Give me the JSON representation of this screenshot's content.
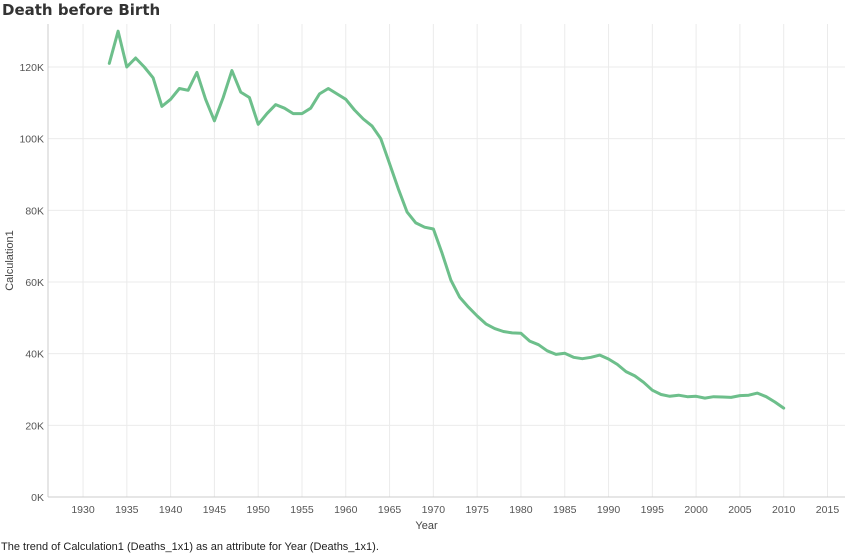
{
  "title": "Death before Birth",
  "caption": "The trend of Calculation1 (Deaths_1x1) as an attribute for Year (Deaths_1x1).",
  "colors": {
    "line": "#6dbf8b",
    "grid": "#ebebeb",
    "axis": "#cccccc"
  },
  "chart_data": {
    "type": "line",
    "title": "Death before Birth",
    "xlabel": "Year",
    "ylabel": "Calculation1",
    "xlim": [
      1926,
      2017
    ],
    "ylim": [
      0,
      132000
    ],
    "x_ticks": [
      {
        "value": 1930,
        "label": "1930"
      },
      {
        "value": 1935,
        "label": "1935"
      },
      {
        "value": 1940,
        "label": "1940"
      },
      {
        "value": 1945,
        "label": "1945"
      },
      {
        "value": 1950,
        "label": "1950"
      },
      {
        "value": 1955,
        "label": "1955"
      },
      {
        "value": 1960,
        "label": "1960"
      },
      {
        "value": 1965,
        "label": "1965"
      },
      {
        "value": 1970,
        "label": "1970"
      },
      {
        "value": 1975,
        "label": "1975"
      },
      {
        "value": 1980,
        "label": "1980"
      },
      {
        "value": 1985,
        "label": "1985"
      },
      {
        "value": 1990,
        "label": "1990"
      },
      {
        "value": 1995,
        "label": "1995"
      },
      {
        "value": 2000,
        "label": "2000"
      },
      {
        "value": 2005,
        "label": "2005"
      },
      {
        "value": 2010,
        "label": "2010"
      },
      {
        "value": 2015,
        "label": "2015"
      }
    ],
    "y_ticks": [
      {
        "value": 0,
        "label": "0K"
      },
      {
        "value": 20000,
        "label": "20K"
      },
      {
        "value": 40000,
        "label": "40K"
      },
      {
        "value": 60000,
        "label": "60K"
      },
      {
        "value": 80000,
        "label": "80K"
      },
      {
        "value": 100000,
        "label": "100K"
      },
      {
        "value": 120000,
        "label": "120K"
      }
    ],
    "grid": true,
    "series": [
      {
        "x": [
          1933,
          1934,
          1935,
          1936,
          1937,
          1938,
          1939,
          1940,
          1941,
          1942,
          1943,
          1944,
          1945,
          1946,
          1947,
          1948,
          1949,
          1950,
          1951,
          1952,
          1953,
          1954,
          1955,
          1956,
          1957,
          1958,
          1959,
          1960,
          1961,
          1962,
          1963,
          1964,
          1965,
          1966,
          1967,
          1968,
          1969,
          1970,
          1971,
          1972,
          1973,
          1974,
          1975,
          1976,
          1977,
          1978,
          1979,
          1980,
          1981,
          1982,
          1983,
          1984,
          1985,
          1986,
          1987,
          1988,
          1989,
          1990,
          1991,
          1992,
          1993,
          1994,
          1995,
          1996,
          1997,
          1998,
          1999,
          2000,
          2001,
          2002,
          2003,
          2004,
          2005,
          2006,
          2007,
          2008,
          2009,
          2010
        ],
        "values": [
          121000,
          130000,
          120000,
          122500,
          120000,
          117000,
          109000,
          111000,
          114000,
          113500,
          118500,
          111000,
          105000,
          111500,
          119000,
          113000,
          111500,
          104000,
          107000,
          109500,
          108500,
          107000,
          107000,
          108500,
          112500,
          114000,
          112500,
          111000,
          108000,
          105500,
          103500,
          100000,
          93000,
          86000,
          79500,
          76500,
          75300,
          74800,
          68000,
          60500,
          55800,
          53000,
          50500,
          48300,
          47000,
          46200,
          45800,
          45700,
          43500,
          42500,
          40800,
          39800,
          40100,
          39000,
          38600,
          39000,
          39600,
          38500,
          37000,
          35000,
          33800,
          32000,
          29800,
          28600,
          28100,
          28400,
          28000,
          28100,
          27600,
          28000,
          27900,
          27800,
          28300,
          28400,
          29000,
          28000,
          26500,
          24800
        ]
      }
    ]
  }
}
